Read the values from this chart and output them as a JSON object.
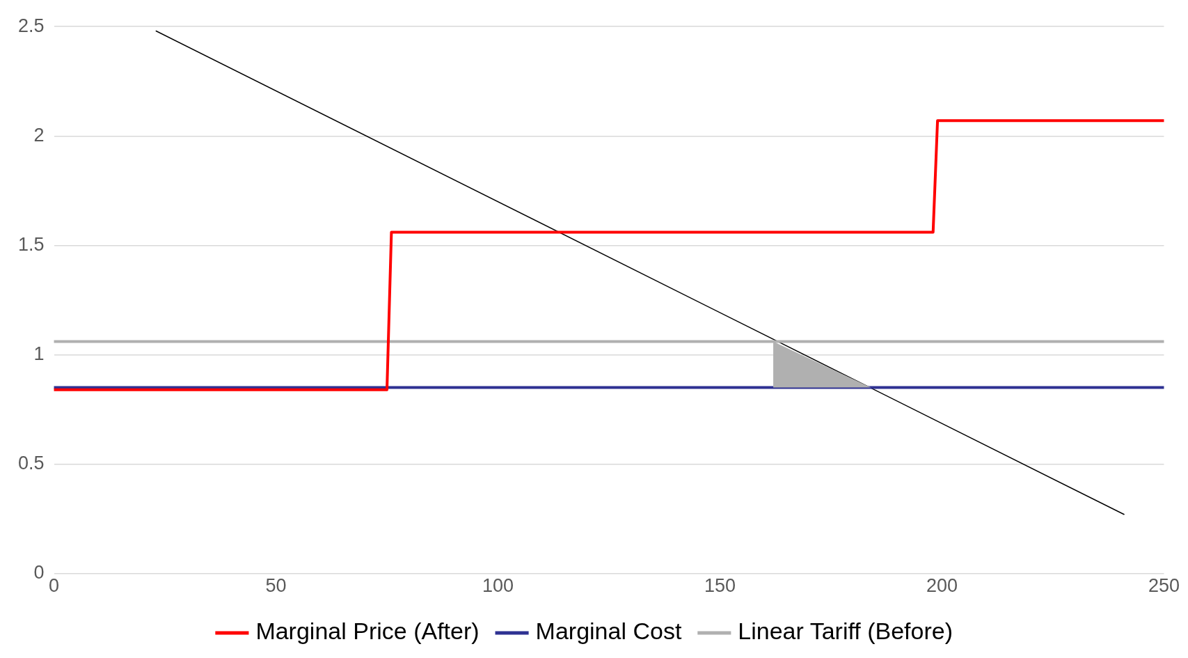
{
  "chart_data": {
    "type": "line",
    "xlim": [
      0,
      250
    ],
    "xticks": [
      0,
      50,
      100,
      150,
      200,
      250
    ],
    "ylim": [
      0,
      2.5
    ],
    "yticks": [
      0,
      0.5,
      1,
      1.5,
      2,
      2.5
    ],
    "grid": "y",
    "legend": "bottom",
    "marker": "none",
    "line_style": "solid",
    "series": [
      {
        "name": "Marginal Price (After)",
        "color": "#ff0000",
        "x": [
          0,
          75,
          76,
          198,
          199,
          250
        ],
        "values": [
          0.84,
          0.84,
          1.56,
          1.56,
          2.07,
          2.07
        ]
      },
      {
        "name": "Marginal Cost",
        "color": "#2e3192",
        "x": [
          0,
          250
        ],
        "values": [
          0.85,
          0.85
        ]
      },
      {
        "name": "Linear Tariff (Before)",
        "color": "#b0b0b0",
        "x": [
          0,
          250
        ],
        "values": [
          1.06,
          1.06
        ]
      },
      {
        "type": "line",
        "color": "#000000",
        "x": [
          23,
          241
        ],
        "values": [
          2.48,
          0.27
        ]
      },
      {
        "type": "area",
        "color": "#b0b0b0",
        "x": [
          162,
          162,
          184
        ],
        "values": [
          0.85,
          1.06,
          0.85
        ]
      }
    ]
  }
}
